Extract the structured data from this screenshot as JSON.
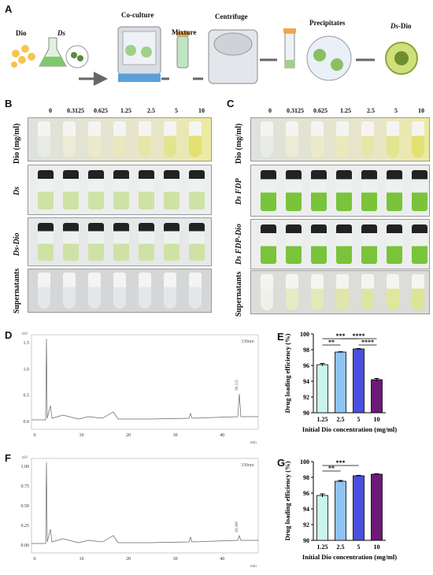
{
  "panelA": {
    "label": "A",
    "dio": "Dio",
    "ds": "Ds",
    "coculture": "Co-culture",
    "mixture": "Mixture",
    "centrifuge": "Centrifuge",
    "precipitates": "Precipitates",
    "dsdio_ds": "Ds",
    "dsdio_dio": "-Dio"
  },
  "panelB": {
    "label": "B",
    "concs": [
      "0",
      "0.3125",
      "0.625",
      "1.25",
      "2.5",
      "5",
      "10"
    ],
    "rows": [
      "Dio (mg/ml)",
      "Ds",
      "Ds-Dio",
      "Supernatants"
    ]
  },
  "panelC": {
    "label": "C",
    "concs": [
      "0",
      "0.3125",
      "0.625",
      "1.25",
      "2.5",
      "5",
      "10"
    ],
    "rows": [
      "Dio (mg/ml)",
      "Ds FDP",
      "Ds FDP-Dio",
      "Supernatants"
    ]
  },
  "panelD": {
    "label": "D",
    "unit": "mV",
    "wavelength": "330nm",
    "peak": "38.312",
    "xunit": "min"
  },
  "panelF": {
    "label": "F",
    "unit": "mV",
    "wavelength": "330nm",
    "peak": "38.308",
    "xunit": "min"
  },
  "panelE": {
    "label": "E"
  },
  "panelG": {
    "label": "G"
  },
  "chart_data": [
    {
      "type": "bar",
      "id": "E",
      "categories": [
        "1.25",
        "2.5",
        "5",
        "10"
      ],
      "values": [
        96.1,
        97.7,
        98.1,
        94.2
      ],
      "errors": [
        0.15,
        0.05,
        0.05,
        0.15
      ],
      "colors": [
        "#c8f5ec",
        "#8ec3f2",
        "#4b4fe0",
        "#6e1a78"
      ],
      "xlabel": "Initial Dio concentration (mg/ml)",
      "ylabel": "Drug loading efficiency (%)",
      "ylim": [
        90,
        100
      ],
      "yticks": [
        "90",
        "92",
        "94",
        "96",
        "98",
        "100"
      ],
      "sig": [
        "**",
        "***",
        "****",
        "****"
      ]
    },
    {
      "type": "bar",
      "id": "G",
      "categories": [
        "1.25",
        "2.5",
        "5",
        "10"
      ],
      "values": [
        95.7,
        97.5,
        98.2,
        98.4
      ],
      "errors": [
        0.2,
        0.1,
        0.05,
        0.05
      ],
      "colors": [
        "#c8f5ec",
        "#8ec3f2",
        "#4b4fe0",
        "#6e1a78"
      ],
      "xlabel": "Initial Dio concentration (mg/ml)",
      "ylabel": "Drug loading efficiency (%)",
      "ylim": [
        90,
        100
      ],
      "yticks": [
        "90",
        "92",
        "94",
        "96",
        "98",
        "100"
      ],
      "sig": [
        "**",
        "***"
      ]
    },
    {
      "type": "line",
      "id": "D",
      "xticks": [
        "0",
        "10",
        "20",
        "30",
        "40"
      ],
      "yticks": [
        "0.0",
        "0.5",
        "1.0",
        "1.5"
      ]
    },
    {
      "type": "line",
      "id": "F",
      "xticks": [
        "0",
        "10",
        "20",
        "30",
        "40"
      ],
      "yticks": [
        "0.00",
        "0.25",
        "0.50",
        "0.75",
        "1.00"
      ]
    }
  ]
}
